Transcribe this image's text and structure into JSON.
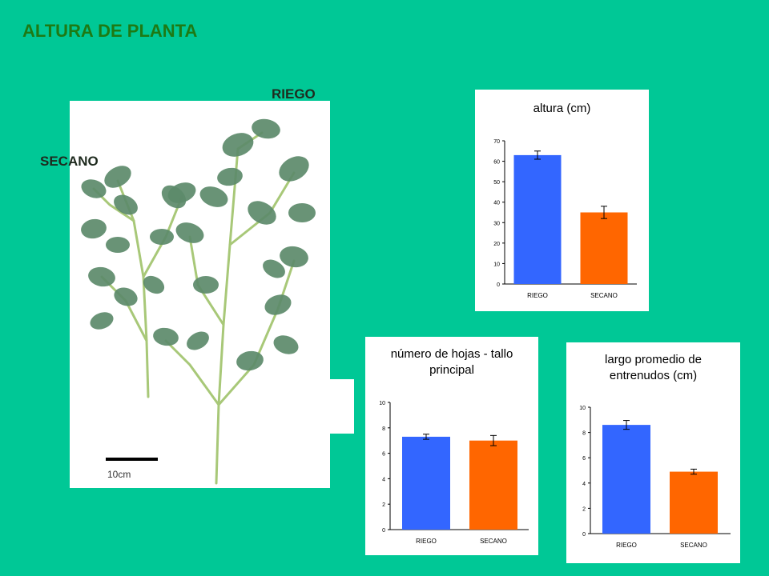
{
  "slide": {
    "title": "ALTURA DE PLANTA",
    "label_riego": "RIEGO",
    "label_secano": "SECANO",
    "scale_label": "10cm"
  },
  "colors": {
    "background": "#00C896",
    "title": "#1E7A14",
    "riego_bar": "#3366FF",
    "secano_bar": "#FF6600",
    "leaf": "#5C8A6A",
    "stem": "#A8C878"
  },
  "chart_data": [
    {
      "type": "bar",
      "title": "altura (cm)",
      "categories": [
        "RIEGO",
        "SECANO"
      ],
      "values": [
        63,
        35
      ],
      "errors": [
        2,
        3
      ],
      "ylim": [
        0,
        70
      ],
      "yticks": [
        0,
        10,
        20,
        30,
        40,
        50,
        60,
        70
      ],
      "xlabel": "",
      "ylabel": ""
    },
    {
      "type": "bar",
      "title": "número de hojas - tallo principal",
      "title_lines": [
        "número de hojas - tallo",
        "principal"
      ],
      "categories": [
        "RIEGO",
        "SECANO"
      ],
      "values": [
        7.3,
        7.0
      ],
      "errors": [
        0.2,
        0.4
      ],
      "ylim": [
        0,
        10
      ],
      "yticks": [
        0,
        2,
        4,
        6,
        8,
        10
      ],
      "xlabel": "",
      "ylabel": ""
    },
    {
      "type": "bar",
      "title": "largo promedio de entrenudos (cm)",
      "title_lines": [
        "largo promedio de",
        "entrenudos (cm)"
      ],
      "categories": [
        "RIEGO",
        "SECANO"
      ],
      "values": [
        8.6,
        4.9
      ],
      "errors": [
        0.35,
        0.2
      ],
      "ylim": [
        0,
        10
      ],
      "yticks": [
        0,
        2,
        4,
        6,
        8,
        10
      ],
      "xlabel": "",
      "ylabel": ""
    }
  ]
}
